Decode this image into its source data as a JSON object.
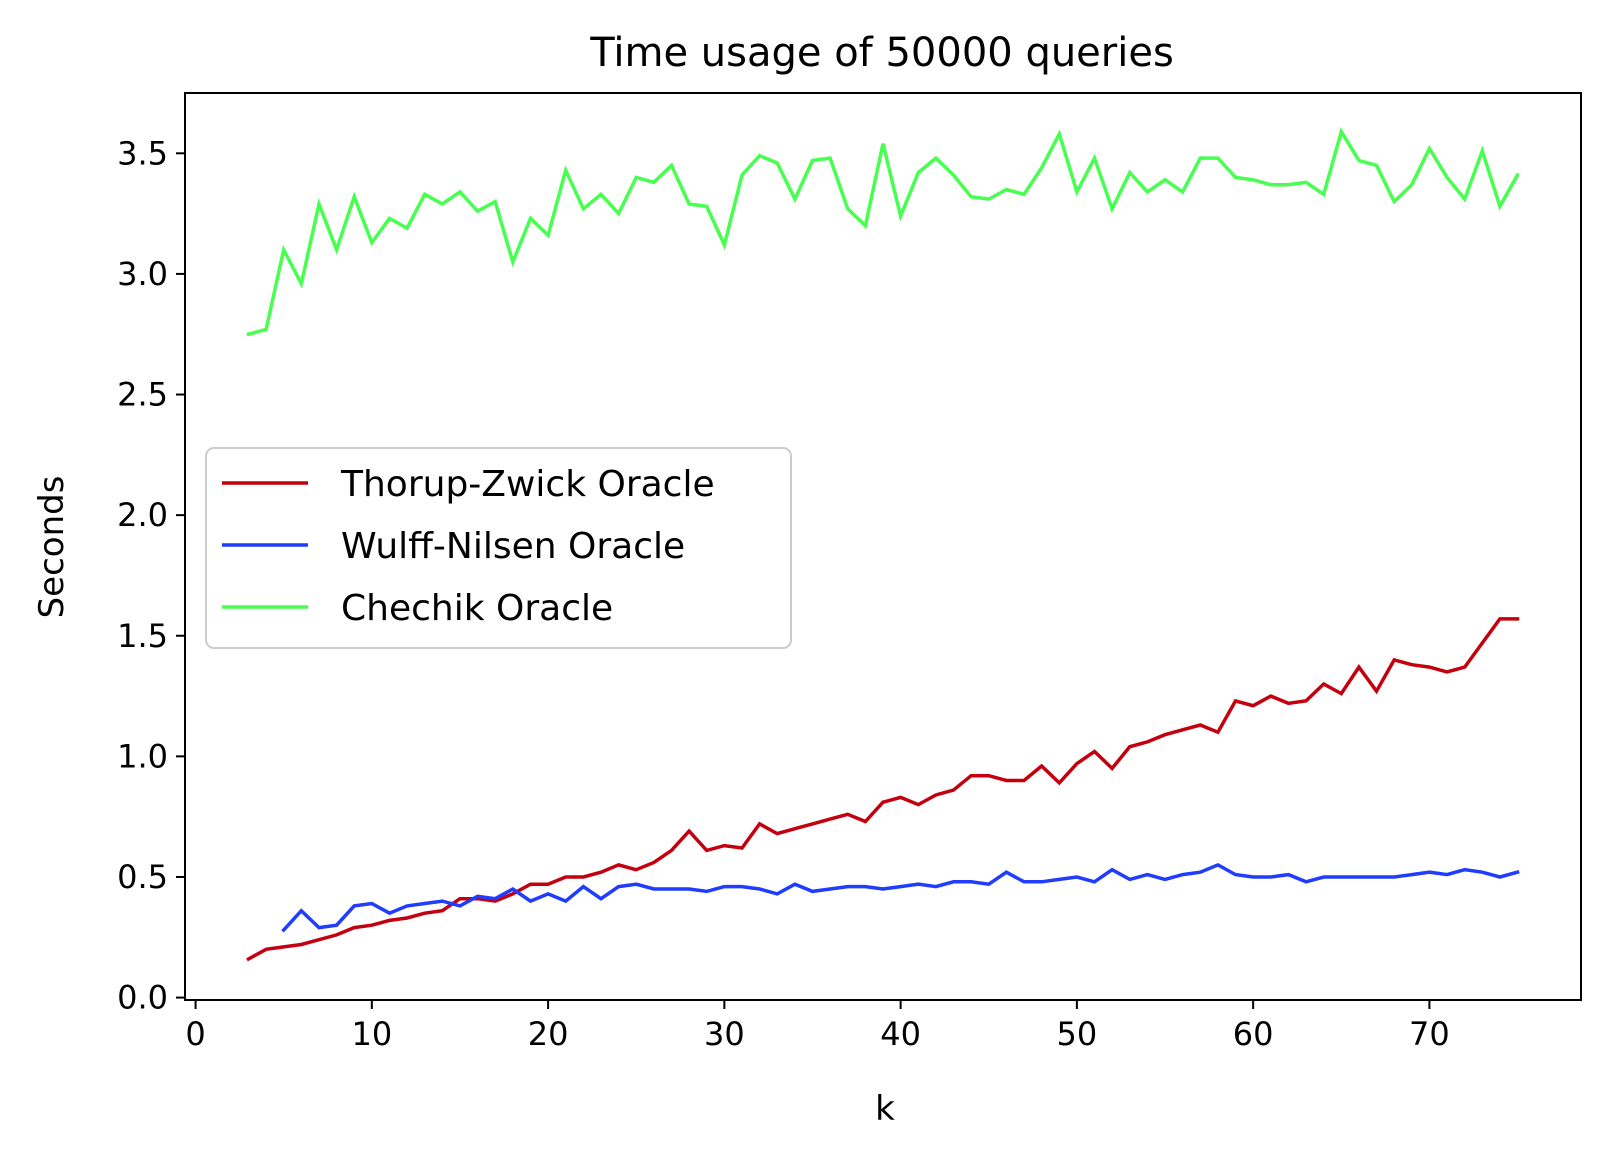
{
  "chart_data": {
    "type": "line",
    "title": "Time usage of 50000 queries",
    "xlabel": "k",
    "ylabel": "Seconds",
    "xlim": [
      -0.6,
      78.6
    ],
    "ylim": [
      -0.01,
      3.75
    ],
    "xticks": [
      0,
      10,
      20,
      30,
      40,
      50,
      60,
      70
    ],
    "xtick_labels": [
      "0",
      "10",
      "20",
      "30",
      "40",
      "50",
      "60",
      "70"
    ],
    "yticks": [
      0.0,
      0.5,
      1.0,
      1.5,
      2.0,
      2.5,
      3.0,
      3.5
    ],
    "ytick_labels": [
      "0.0",
      "0.5",
      "1.0",
      "1.5",
      "2.0",
      "2.5",
      "3.0",
      "3.5"
    ],
    "grid": false,
    "legend_position": "center-left",
    "series": [
      {
        "name": "Thorup-Zwick Oracle",
        "color": "#c4000f",
        "x": [
          3,
          4,
          5,
          6,
          7,
          8,
          9,
          10,
          11,
          12,
          13,
          14,
          15,
          16,
          17,
          18,
          19,
          20,
          21,
          22,
          23,
          24,
          25,
          26,
          27,
          28,
          29,
          30,
          31,
          32,
          33,
          34,
          35,
          36,
          37,
          38,
          39,
          40,
          41,
          42,
          43,
          44,
          45,
          46,
          47,
          48,
          49,
          50,
          51,
          52,
          53,
          54,
          55,
          56,
          57,
          58,
          59,
          60,
          61,
          62,
          63,
          64,
          65,
          66,
          67,
          68,
          69,
          70,
          71,
          72,
          73,
          74,
          75
        ],
        "values": [
          0.16,
          0.2,
          0.21,
          0.22,
          0.24,
          0.26,
          0.29,
          0.3,
          0.32,
          0.33,
          0.35,
          0.36,
          0.41,
          0.41,
          0.4,
          0.43,
          0.47,
          0.47,
          0.5,
          0.5,
          0.52,
          0.55,
          0.53,
          0.56,
          0.61,
          0.69,
          0.61,
          0.63,
          0.62,
          0.72,
          0.68,
          0.7,
          0.72,
          0.74,
          0.76,
          0.73,
          0.81,
          0.83,
          0.8,
          0.84,
          0.86,
          0.92,
          0.92,
          0.9,
          0.9,
          0.96,
          0.89,
          0.97,
          1.02,
          0.95,
          1.04,
          1.06,
          1.09,
          1.11,
          1.13,
          1.1,
          1.23,
          1.21,
          1.25,
          1.22,
          1.23,
          1.3,
          1.26,
          1.37,
          1.27,
          1.4,
          1.38,
          1.37,
          1.35,
          1.37,
          1.47,
          1.57,
          1.57
        ]
      },
      {
        "name": "Wulff-Nilsen Oracle",
        "color": "#1f3cff",
        "x": [
          5,
          6,
          7,
          8,
          9,
          10,
          11,
          12,
          13,
          14,
          15,
          16,
          17,
          18,
          19,
          20,
          21,
          22,
          23,
          24,
          25,
          26,
          27,
          28,
          29,
          30,
          31,
          32,
          33,
          34,
          35,
          36,
          37,
          38,
          39,
          40,
          41,
          42,
          43,
          44,
          45,
          46,
          47,
          48,
          49,
          50,
          51,
          52,
          53,
          54,
          55,
          56,
          57,
          58,
          59,
          60,
          61,
          62,
          63,
          64,
          65,
          66,
          67,
          68,
          69,
          70,
          71,
          72,
          73,
          74,
          75
        ],
        "values": [
          0.28,
          0.36,
          0.29,
          0.3,
          0.38,
          0.39,
          0.35,
          0.38,
          0.39,
          0.4,
          0.38,
          0.42,
          0.41,
          0.45,
          0.4,
          0.43,
          0.4,
          0.46,
          0.41,
          0.46,
          0.47,
          0.45,
          0.45,
          0.45,
          0.44,
          0.46,
          0.46,
          0.45,
          0.43,
          0.47,
          0.44,
          0.45,
          0.46,
          0.46,
          0.45,
          0.46,
          0.47,
          0.46,
          0.48,
          0.48,
          0.47,
          0.52,
          0.48,
          0.48,
          0.49,
          0.5,
          0.48,
          0.53,
          0.49,
          0.51,
          0.49,
          0.51,
          0.52,
          0.55,
          0.51,
          0.5,
          0.5,
          0.51,
          0.48,
          0.5,
          0.5,
          0.5,
          0.5,
          0.5,
          0.51,
          0.52,
          0.51,
          0.53,
          0.52,
          0.5,
          0.52
        ]
      },
      {
        "name": "Chechik Oracle",
        "color": "#47ff4f",
        "x": [
          3,
          4,
          5,
          6,
          7,
          8,
          9,
          10,
          11,
          12,
          13,
          14,
          15,
          16,
          17,
          18,
          19,
          20,
          21,
          22,
          23,
          24,
          25,
          26,
          27,
          28,
          29,
          30,
          31,
          32,
          33,
          34,
          35,
          36,
          37,
          38,
          39,
          40,
          41,
          42,
          43,
          44,
          45,
          46,
          47,
          48,
          49,
          50,
          51,
          52,
          53,
          54,
          55,
          56,
          57,
          58,
          59,
          60,
          61,
          62,
          63,
          64,
          65,
          66,
          67,
          68,
          69,
          70,
          71,
          72,
          73,
          74,
          75
        ],
        "values": [
          2.75,
          2.77,
          3.1,
          2.96,
          3.29,
          3.1,
          3.32,
          3.13,
          3.23,
          3.19,
          3.33,
          3.29,
          3.34,
          3.26,
          3.3,
          3.05,
          3.23,
          3.16,
          3.43,
          3.27,
          3.33,
          3.25,
          3.4,
          3.38,
          3.45,
          3.29,
          3.28,
          3.12,
          3.41,
          3.49,
          3.46,
          3.31,
          3.47,
          3.48,
          3.27,
          3.2,
          3.54,
          3.24,
          3.42,
          3.48,
          3.41,
          3.32,
          3.31,
          3.35,
          3.33,
          3.44,
          3.58,
          3.34,
          3.48,
          3.27,
          3.42,
          3.34,
          3.39,
          3.34,
          3.48,
          3.48,
          3.4,
          3.39,
          3.37,
          3.37,
          3.38,
          3.33,
          3.59,
          3.47,
          3.45,
          3.3,
          3.37,
          3.52,
          3.4,
          3.31,
          3.51,
          3.28,
          3.41
        ]
      }
    ]
  }
}
